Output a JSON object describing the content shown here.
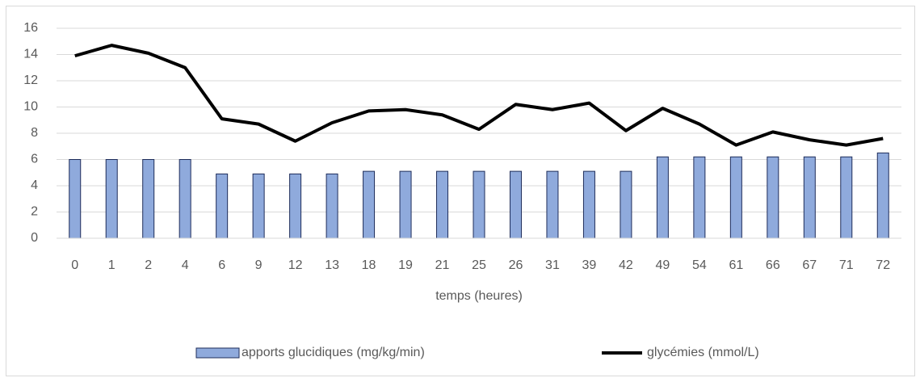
{
  "chart_data": {
    "type": "bar",
    "x_label": "temps (heures)",
    "categories": [
      "0",
      "1",
      "2",
      "4",
      "6",
      "9",
      "12",
      "13",
      "18",
      "19",
      "21",
      "25",
      "26",
      "31",
      "39",
      "42",
      "49",
      "54",
      "61",
      "66",
      "67",
      "71",
      "72"
    ],
    "series": [
      {
        "name": "apports glucidiques (mg/kg/min)",
        "type": "bar",
        "color": "#8faadc",
        "values": [
          6,
          6,
          6,
          6,
          4.9,
          4.9,
          4.9,
          4.9,
          5.1,
          5.1,
          5.1,
          5.1,
          5.1,
          5.1,
          5.1,
          5.1,
          6.2,
          6.2,
          6.2,
          6.2,
          6.2,
          6.2,
          6.5
        ]
      },
      {
        "name": "glycémies (mmol/L)",
        "type": "line",
        "color": "#000000",
        "values": [
          13.9,
          14.7,
          14.1,
          13.0,
          9.1,
          8.7,
          7.4,
          8.8,
          9.7,
          9.8,
          9.4,
          8.3,
          10.2,
          9.8,
          10.3,
          8.2,
          9.9,
          8.7,
          7.1,
          8.1,
          7.5,
          7.1,
          7.6
        ]
      }
    ],
    "ylim": [
      0,
      16
    ],
    "yticks": [
      0,
      2,
      4,
      6,
      8,
      10,
      12,
      14,
      16
    ],
    "grid": true,
    "legend": "bottom"
  }
}
